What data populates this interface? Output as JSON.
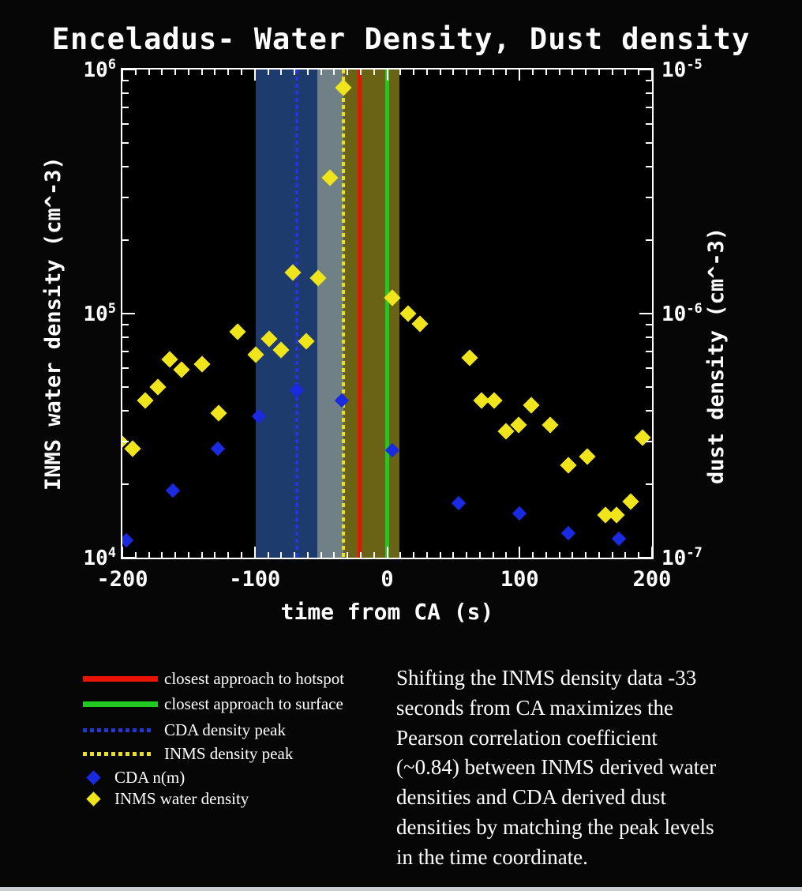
{
  "title": "Enceladus- Water Density, Dust density",
  "chart_data": {
    "type": "scatter",
    "title": "Enceladus- Water Density, Dust density",
    "xlabel": "time from CA (s)",
    "ylabel_left": "INMS water density (cm^-3)",
    "ylabel_right": "dust density (cm^-3)",
    "xlim": [
      -200,
      200
    ],
    "ylog_left_lim": [
      10000,
      1000000
    ],
    "ylog_right_lim": [
      1e-07,
      1e-05
    ],
    "grid": false,
    "x_major_ticks": [
      {
        "t": -200,
        "label": "-200"
      },
      {
        "t": -100,
        "label": "-100"
      },
      {
        "t": 0,
        "label": "0"
      },
      {
        "t": 100,
        "label": "100"
      },
      {
        "t": 200,
        "label": "200"
      }
    ],
    "x_minor_step": 10,
    "y_major_ticks_left": [
      {
        "value": 1000000,
        "base": "10",
        "exp": "6"
      },
      {
        "value": 100000,
        "base": "10",
        "exp": "5"
      },
      {
        "value": 10000,
        "base": "10",
        "exp": "4"
      }
    ],
    "y_major_ticks_right": [
      {
        "align_value": 1000000,
        "base": "10",
        "exp": "-5"
      },
      {
        "align_value": 100000,
        "base": "10",
        "exp": "-6"
      },
      {
        "align_value": 10000,
        "base": "10",
        "exp": "-7"
      }
    ],
    "bands": [
      {
        "name": "blue-band",
        "from": -99,
        "to": -53,
        "color": "#1d3b6d"
      },
      {
        "name": "gray-band",
        "from": -53,
        "to": -33,
        "color": "#6f8086"
      },
      {
        "name": "olive-band",
        "from": -33,
        "to": 9,
        "color": "#6a6315"
      }
    ],
    "vlines": [
      {
        "name": "cda-density-peak",
        "t": -68,
        "color": "#2535d6",
        "style": "dotted",
        "width": 4
      },
      {
        "name": "inms-density-peak",
        "t": -33,
        "color": "#e8e020",
        "style": "dotted",
        "width": 4
      },
      {
        "name": "closest-approach-hotspot",
        "t": -21,
        "color": "#e81400",
        "style": "solid",
        "width": 5
      },
      {
        "name": "closest-approach-surface",
        "t": 0,
        "color": "#22c822",
        "style": "solid",
        "width": 5
      }
    ],
    "series": [
      {
        "name": "INMS water density",
        "marker": "diamond",
        "color": "#f0e41c",
        "size": 15,
        "points": [
          [
            -202,
            30000
          ],
          [
            -192,
            28000
          ],
          [
            -183,
            44000
          ],
          [
            -173,
            50000
          ],
          [
            -164,
            65000
          ],
          [
            -155,
            59000
          ],
          [
            -140,
            62000
          ],
          [
            -127,
            39000
          ],
          [
            -113,
            84000
          ],
          [
            -99,
            68000
          ],
          [
            -89,
            79000
          ],
          [
            -80,
            71000
          ],
          [
            -71,
            147000
          ],
          [
            -61,
            77000
          ],
          [
            -52,
            140000
          ],
          [
            -43,
            360000
          ],
          [
            -33,
            840000
          ],
          [
            4,
            116000
          ],
          [
            16,
            100000
          ],
          [
            25,
            91000
          ],
          [
            62,
            66000
          ],
          [
            71,
            44000
          ],
          [
            81,
            44000
          ],
          [
            90,
            33000
          ],
          [
            99,
            35000
          ],
          [
            109,
            42000
          ],
          [
            123,
            35000
          ],
          [
            137,
            24000
          ],
          [
            151,
            26000
          ],
          [
            165,
            15000
          ],
          [
            173,
            15000
          ],
          [
            184,
            17000
          ],
          [
            193,
            31000
          ]
        ]
      },
      {
        "name": "CDA n(m)",
        "marker": "diamond",
        "color": "#1a2ae0",
        "size": 13,
        "points": [
          [
            -197,
            11800
          ],
          [
            -162,
            18800
          ],
          [
            -128,
            28000
          ],
          [
            -97,
            38000
          ],
          [
            -68,
            48500
          ],
          [
            -34,
            44000
          ],
          [
            4,
            27500
          ],
          [
            54,
            16700
          ],
          [
            100,
            15200
          ],
          [
            137,
            12600
          ],
          [
            175,
            12000
          ]
        ]
      }
    ]
  },
  "legend": {
    "items": [
      {
        "marker": "solid-line",
        "color": "#e81400",
        "label": "closest approach to hotspot"
      },
      {
        "marker": "solid-line",
        "color": "#22c822",
        "label": "closest approach to surface"
      },
      {
        "marker": "dotted-line",
        "color": "#2535d6",
        "label": "CDA density peak"
      },
      {
        "marker": "dotted-line",
        "color": "#e8e020",
        "label": "INMS density peak"
      },
      {
        "marker": "diamond",
        "color": "#1a2ae0",
        "label": "CDA n(m)"
      },
      {
        "marker": "diamond",
        "color": "#f0e41c",
        "label": "INMS water density"
      }
    ]
  },
  "annotation": {
    "lines": [
      "Shifting the INMS density data -33",
      "seconds from CA maximizes the",
      "Pearson correlation coefficient",
      "(~0.84) between INMS derived water",
      "densities and CDA derived dust",
      "densities by matching the peak levels",
      "in the time coordinate."
    ]
  },
  "colors": {
    "background": "#060606",
    "plot_background": "#000000",
    "axis": "#ffffff",
    "text": "#ffffff",
    "bottom_strip": "#c7cdd2"
  }
}
